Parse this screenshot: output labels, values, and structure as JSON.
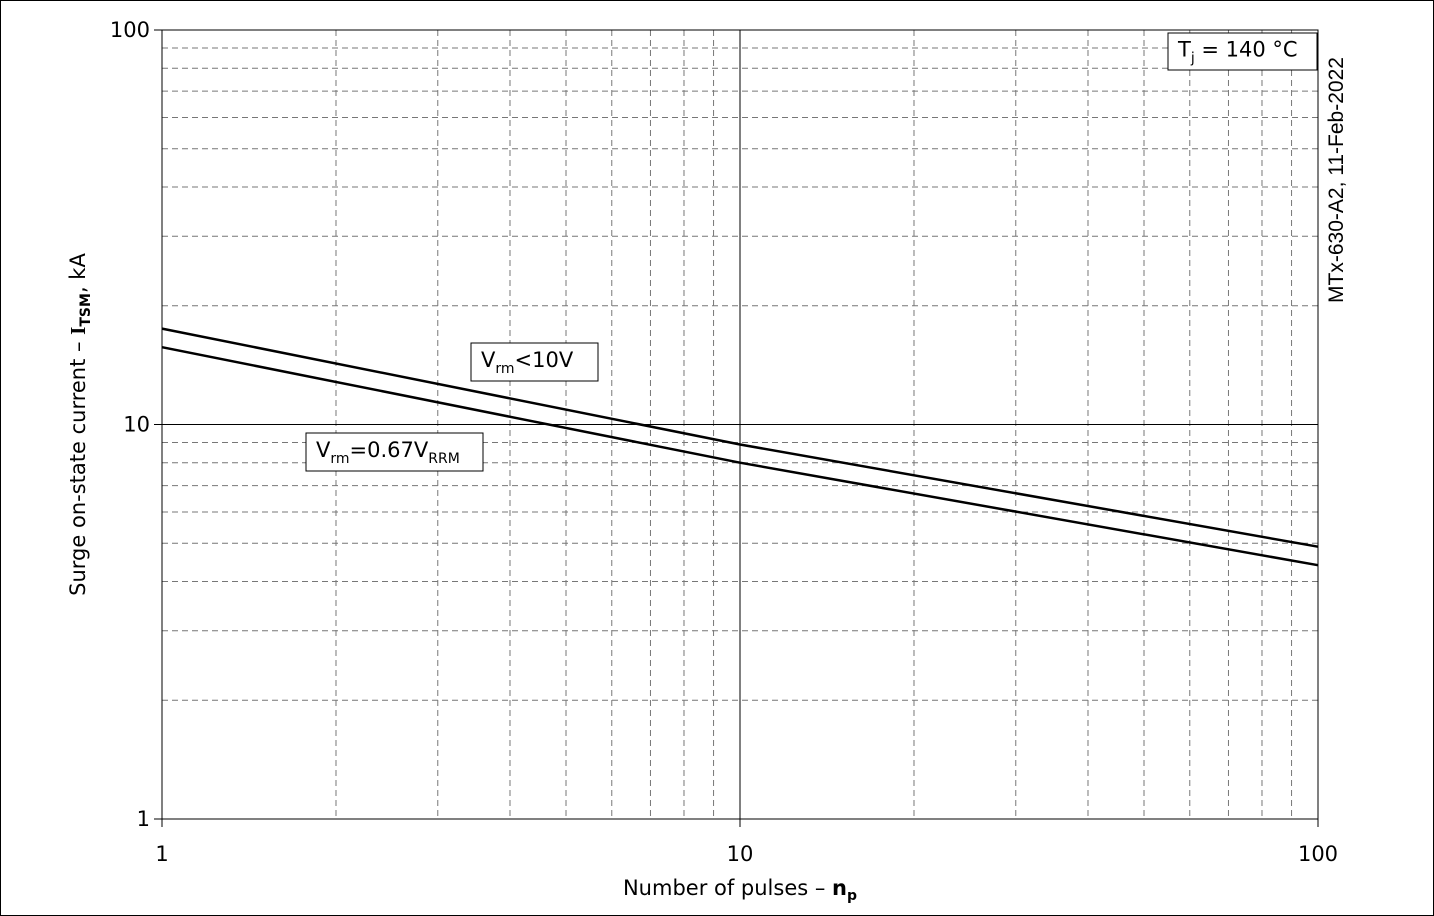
{
  "chart_data": {
    "type": "line",
    "xscale": "log",
    "yscale": "log",
    "xlim": [
      1,
      100
    ],
    "ylim": [
      1,
      100
    ],
    "grid": true,
    "xticks": [
      "1",
      "10",
      "100"
    ],
    "yticks": [
      "1",
      "10",
      "100"
    ],
    "xlabel": "Number of pulses – ",
    "xlabel_symbol": "n",
    "xlabel_sub": "p",
    "ylabel": "Surge on-state current – ",
    "ylabel_symbol": "I",
    "ylabel_sub": "TSM",
    "ylabel_unit": ", kA",
    "series": [
      {
        "name_main": "V",
        "name_sub": "rm",
        "name_rest": "<10V",
        "x": [
          1,
          10,
          100
        ],
        "y": [
          17.5,
          8.9,
          4.9
        ]
      },
      {
        "name_main": "V",
        "name_sub": "rm",
        "name_rest": "=0.67V",
        "name_sub2": "RRM",
        "x": [
          1,
          10,
          100
        ],
        "y": [
          15.7,
          8.0,
          4.4
        ]
      }
    ],
    "annotation": {
      "main": "T",
      "sub": "j",
      "rest": " = 140 °C"
    },
    "side_note": "MTx-630-A2,  11-Feb-2022"
  }
}
